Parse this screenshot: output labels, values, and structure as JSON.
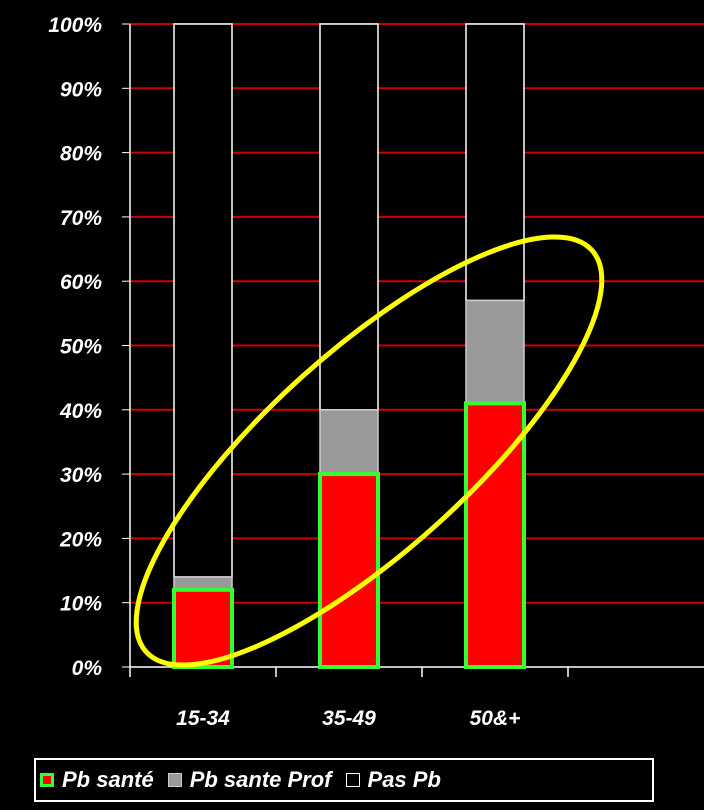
{
  "chart_data": {
    "type": "bar",
    "stacked": true,
    "categories": [
      "15-34",
      "35-49",
      "50&+"
    ],
    "series": [
      {
        "name": "Pb santé",
        "values": [
          12,
          30,
          41
        ],
        "color": "#ff0000",
        "border": "#33ff33"
      },
      {
        "name": "Pb sante Prof",
        "values": [
          2,
          10,
          16
        ],
        "color": "#999999",
        "border": "#cccccc"
      },
      {
        "name": "Pas Pb",
        "values": [
          86,
          60,
          43
        ],
        "color": "#000000",
        "border": "#ffffff"
      }
    ],
    "y_ticks": [
      "0%",
      "10%",
      "20%",
      "30%",
      "40%",
      "50%",
      "60%",
      "70%",
      "80%",
      "90%",
      "100%"
    ],
    "ylim": [
      0,
      100
    ],
    "gridline_color": "#cc0000",
    "annotation": {
      "shape": "ellipse",
      "color": "#ffff00"
    },
    "legend_position": "bottom"
  }
}
